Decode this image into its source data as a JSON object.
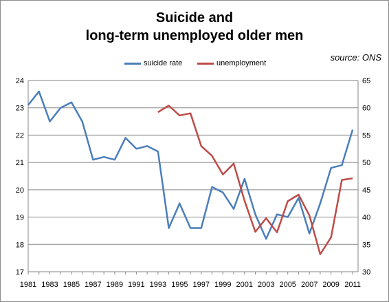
{
  "chart_data": {
    "type": "line",
    "title_lines": [
      "Suicide and",
      "long-term unemployed older men"
    ],
    "source": "source: ONS",
    "x_tick_labels": [
      "1981",
      "1983",
      "1985",
      "1987",
      "1989",
      "1991",
      "1993",
      "1995",
      "1997",
      "1999",
      "2001",
      "2003",
      "2005",
      "2007",
      "2009",
      "2011"
    ],
    "y_left": {
      "min": 17,
      "max": 24,
      "step": 1
    },
    "y_right": {
      "min": 30,
      "max": 65,
      "step": 5
    },
    "grid": true,
    "legend_position": "top",
    "series": [
      {
        "name": "suicide rate",
        "axis": "left",
        "color": "#4a7ebb",
        "x": [
          1981,
          1982,
          1983,
          1984,
          1985,
          1986,
          1987,
          1988,
          1989,
          1990,
          1991,
          1992,
          1993,
          1994,
          1995,
          1996,
          1997,
          1998,
          1999,
          2000,
          2001,
          2002,
          2003,
          2004,
          2005,
          2006,
          2007,
          2008,
          2009,
          2010,
          2011
        ],
        "values": [
          23.1,
          23.6,
          22.5,
          23.0,
          23.2,
          22.5,
          21.1,
          21.2,
          21.1,
          21.9,
          21.5,
          21.6,
          21.4,
          18.6,
          19.5,
          18.6,
          18.6,
          20.1,
          19.9,
          19.3,
          20.4,
          19.1,
          18.2,
          19.1,
          19.0,
          19.7,
          18.4,
          19.5,
          20.8,
          20.9,
          22.2
        ]
      },
      {
        "name": "unemployment",
        "axis": "right",
        "color": "#be4b48",
        "x": [
          1993,
          1994,
          1995,
          1996,
          1997,
          1998,
          1999,
          2000,
          2001,
          2002,
          2003,
          2004,
          2005,
          2006,
          2007,
          2008,
          2009,
          2010,
          2011
        ],
        "values": [
          59.2,
          60.4,
          58.6,
          59.0,
          53.0,
          51.2,
          47.8,
          49.8,
          43.0,
          37.3,
          39.8,
          37.2,
          42.9,
          44.1,
          40.3,
          33.2,
          36.3,
          46.8,
          47.1
        ]
      }
    ]
  }
}
